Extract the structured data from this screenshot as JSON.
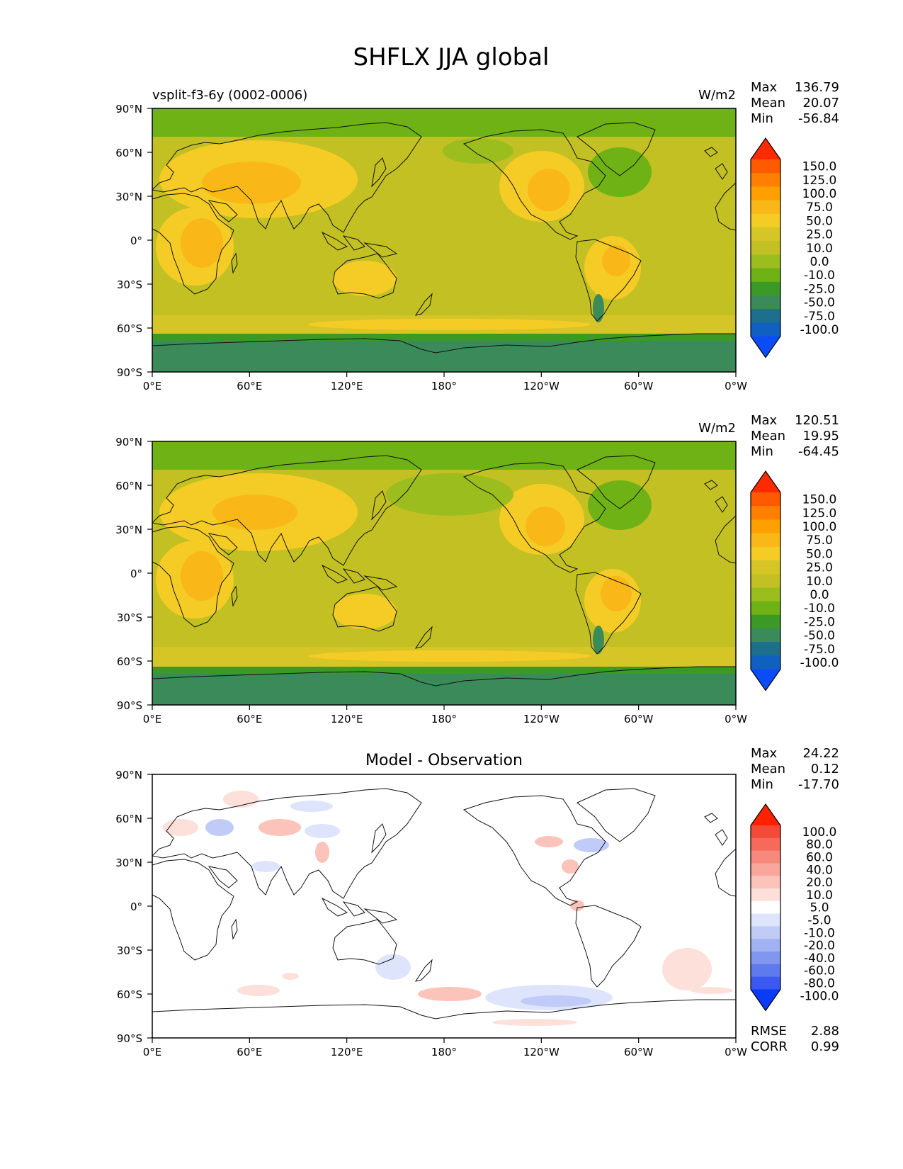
{
  "title": "SHFLX JJA global",
  "chart_data": [
    {
      "type": "heatmap",
      "title": "",
      "left_label": "vsplit-f3-6y (0002-0006)",
      "units": "W/m2",
      "stats": [
        {
          "label": "Max",
          "value": "136.79"
        },
        {
          "label": "Mean",
          "value": "20.07"
        },
        {
          "label": "Min",
          "value": "-56.84"
        }
      ],
      "x_ticks": [
        "0°E",
        "60°E",
        "120°E",
        "180°",
        "120°W",
        "60°W",
        "0°W"
      ],
      "y_ticks": [
        "90°N",
        "60°N",
        "30°N",
        "0°",
        "30°S",
        "60°S",
        "90°S"
      ],
      "colorbar_levels": [
        "150.0",
        "125.0",
        "100.0",
        "75.0",
        "50.0",
        "25.0",
        "10.0",
        "0.0",
        "-10.0",
        "-25.0",
        "-50.0",
        "-75.0",
        "-100.0"
      ],
      "colorbar_colors": [
        "#ff2a00",
        "#ff5a00",
        "#ff8000",
        "#ffa000",
        "#f9b818",
        "#f5cc26",
        "#d6c526",
        "#c2c022",
        "#9bbd1e",
        "#6eb215",
        "#3b9a26",
        "#3b8a5a",
        "#1d6f8e",
        "#1060c0",
        "#0a4cf5"
      ]
    },
    {
      "type": "heatmap",
      "title": "",
      "left_label": "",
      "units": "W/m2",
      "stats": [
        {
          "label": "Max",
          "value": "120.51"
        },
        {
          "label": "Mean",
          "value": "19.95"
        },
        {
          "label": "Min",
          "value": "-64.45"
        }
      ],
      "x_ticks": [
        "0°E",
        "60°E",
        "120°E",
        "180°",
        "120°W",
        "60°W",
        "0°W"
      ],
      "y_ticks": [
        "90°N",
        "60°N",
        "30°N",
        "0°",
        "30°S",
        "60°S",
        "90°S"
      ],
      "colorbar_levels": [
        "150.0",
        "125.0",
        "100.0",
        "75.0",
        "50.0",
        "25.0",
        "10.0",
        "0.0",
        "-10.0",
        "-25.0",
        "-50.0",
        "-75.0",
        "-100.0"
      ],
      "colorbar_colors": [
        "#ff2a00",
        "#ff5a00",
        "#ff8000",
        "#ffa000",
        "#f9b818",
        "#f5cc26",
        "#d6c526",
        "#c2c022",
        "#9bbd1e",
        "#6eb215",
        "#3b9a26",
        "#3b8a5a",
        "#1d6f8e",
        "#1060c0",
        "#0a4cf5"
      ]
    },
    {
      "type": "heatmap",
      "title": "Model - Observation",
      "left_label": "",
      "units": "",
      "stats": [
        {
          "label": "Max",
          "value": "24.22"
        },
        {
          "label": "Mean",
          "value": "0.12"
        },
        {
          "label": "Min",
          "value": "-17.70"
        }
      ],
      "x_ticks": [
        "0°E",
        "60°E",
        "120°E",
        "180°",
        "120°W",
        "60°W",
        "0°W"
      ],
      "y_ticks": [
        "90°N",
        "60°N",
        "30°N",
        "0°",
        "30°S",
        "60°S",
        "90°S"
      ],
      "colorbar_levels": [
        "100.0",
        "80.0",
        "60.0",
        "40.0",
        "20.0",
        "10.0",
        "5.0",
        "-5.0",
        "-10.0",
        "-20.0",
        "-40.0",
        "-60.0",
        "-80.0",
        "-100.0"
      ],
      "colorbar_colors": [
        "#ff2200",
        "#f44a38",
        "#f56a5a",
        "#f7897c",
        "#f9a79c",
        "#fbc3ba",
        "#fde0da",
        "#ffffff",
        "#dde4fb",
        "#c0ccf7",
        "#a0b2f2",
        "#8096ef",
        "#5f7aec",
        "#3b58f0",
        "#0a3cf8"
      ],
      "metrics": [
        {
          "label": "RMSE",
          "value": "2.88"
        },
        {
          "label": "CORR",
          "value": "0.99"
        }
      ]
    }
  ]
}
